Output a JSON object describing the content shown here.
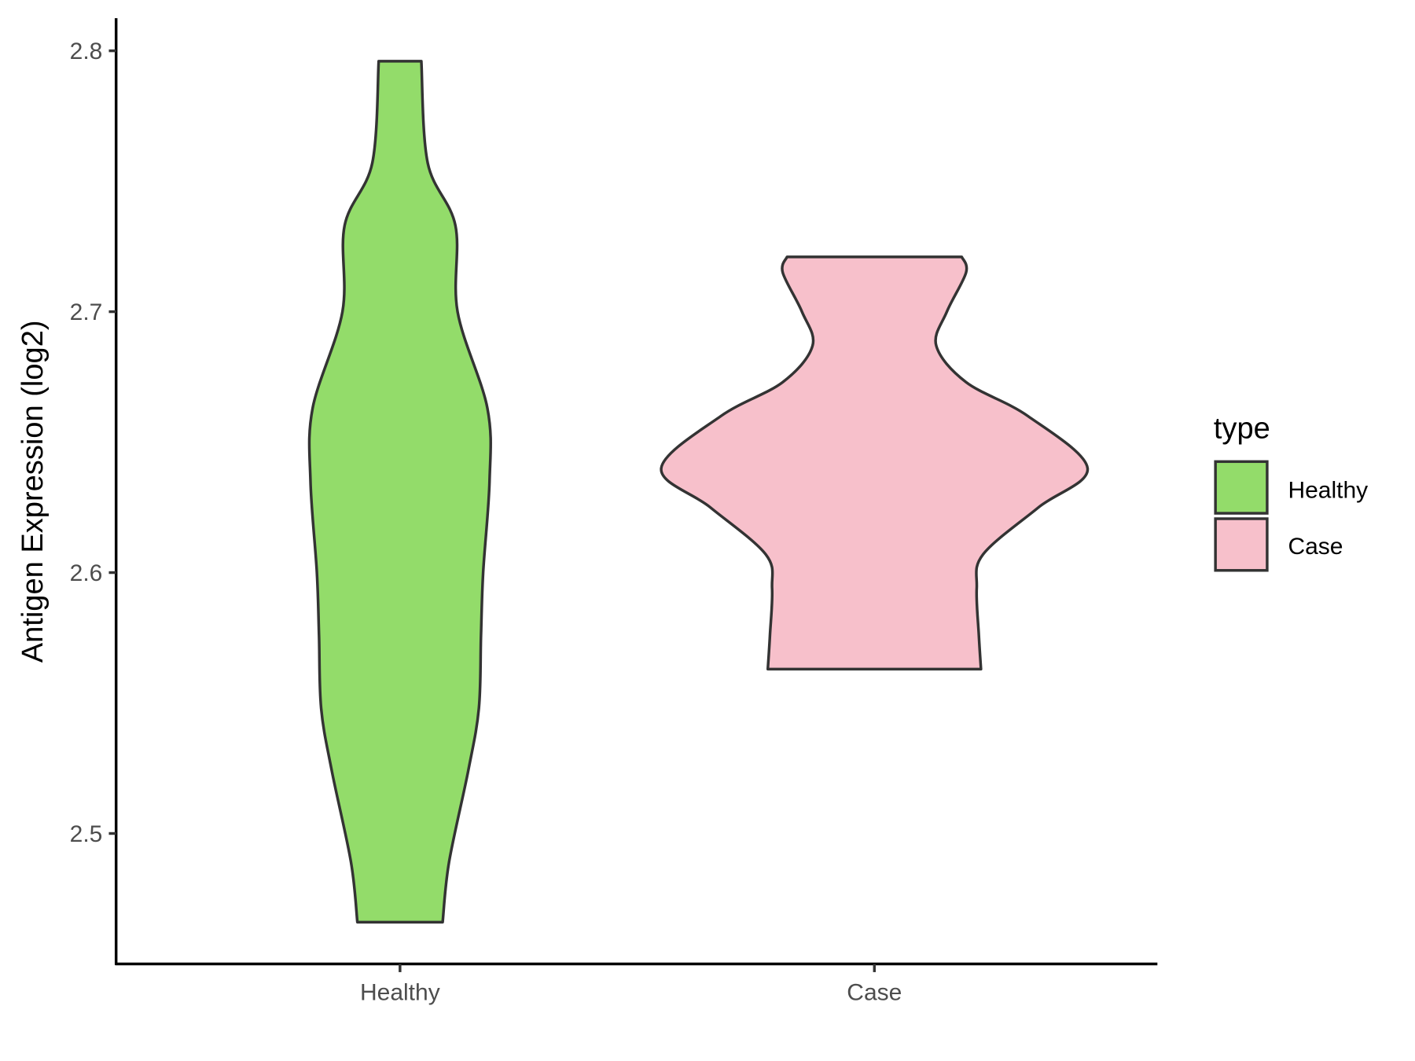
{
  "chart_data": {
    "type": "violin",
    "title": "",
    "xlabel": "",
    "ylabel": "Antigen Expression (log2)",
    "ylim": [
      2.45,
      2.8125
    ],
    "yticks": [
      2.5,
      2.6,
      2.7,
      2.8
    ],
    "ytick_labels": [
      "2.5",
      "2.6",
      "2.7",
      "2.8"
    ],
    "categories": [
      "Healthy",
      "Case"
    ],
    "grid": false,
    "legend": {
      "title": "type",
      "placement": "right",
      "entries": [
        "Healthy",
        "Case"
      ]
    },
    "series": [
      {
        "name": "Healthy",
        "color": "#93DC6A",
        "min": 2.466,
        "max": 2.796,
        "profile": {
          "y": [
            2.796,
            2.757,
            2.733,
            2.7,
            2.663,
            2.635,
            2.6,
            2.576,
            2.548,
            2.524,
            2.489,
            2.466
          ],
          "relative_width": [
            0.1,
            0.13,
            0.26,
            0.27,
            0.41,
            0.42,
            0.39,
            0.38,
            0.37,
            0.32,
            0.23,
            0.2
          ]
        }
      },
      {
        "name": "Case",
        "color": "#F7C0CB",
        "min": 2.563,
        "max": 2.721,
        "profile": {
          "y": [
            2.721,
            2.715,
            2.7,
            2.687,
            2.673,
            2.66,
            2.64,
            2.625,
            2.607,
            2.594,
            2.576,
            2.563
          ],
          "relative_width": [
            0.41,
            0.43,
            0.34,
            0.29,
            0.43,
            0.72,
            1.0,
            0.77,
            0.51,
            0.48,
            0.49,
            0.5
          ]
        }
      }
    ],
    "outline_color": "#333333"
  }
}
